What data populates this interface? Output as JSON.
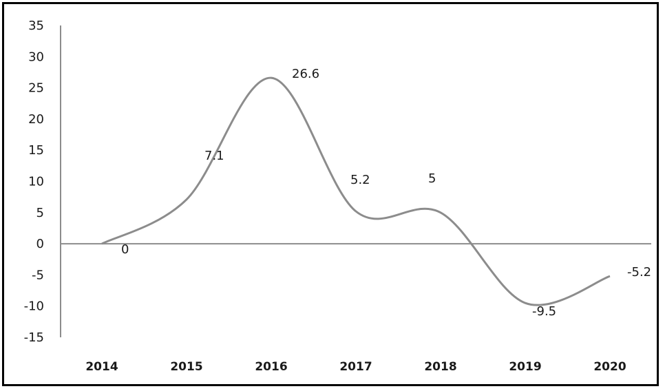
{
  "chart_data": {
    "type": "line",
    "categories": [
      "2014",
      "2015",
      "2016",
      "2017",
      "2018",
      "2019",
      "2020"
    ],
    "series": [
      {
        "values": [
          0,
          7.1,
          26.6,
          5.2,
          5,
          -9.5,
          -5.2
        ]
      }
    ],
    "y_ticks": [
      "35",
      "30",
      "25",
      "20",
      "15",
      "10",
      "5",
      "0",
      "-5",
      "-10",
      "-15"
    ],
    "data_labels": [
      "0",
      "7.1",
      "26.6",
      "5.2",
      "5",
      "-9.5",
      "-5.2"
    ],
    "ylim": [
      -15,
      35
    ],
    "smooth": true,
    "grid": false,
    "line_color": "#8c8c8c",
    "axis_color": "#8c8c8c"
  }
}
